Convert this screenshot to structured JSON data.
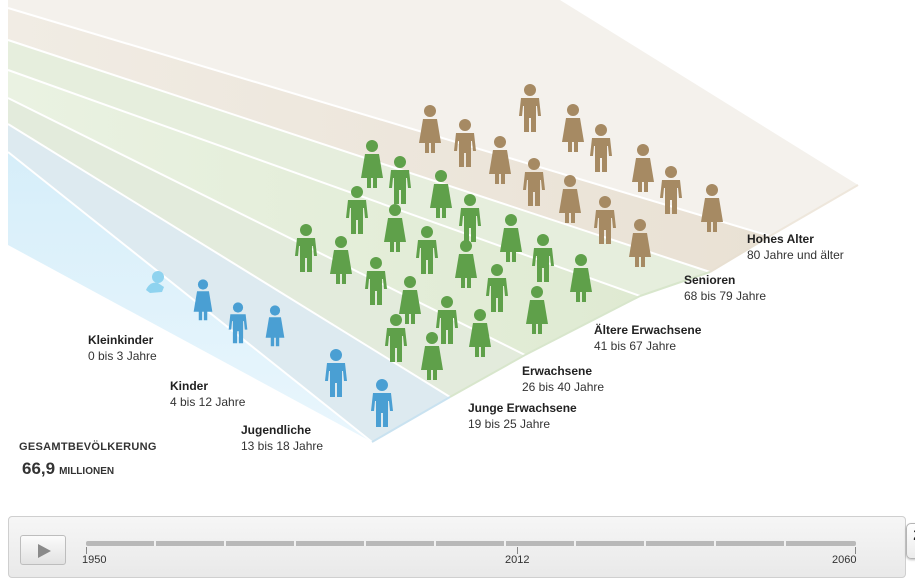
{
  "groups": [
    {
      "name": "Kleinkinder",
      "range": "0 bis 3 Jahre"
    },
    {
      "name": "Kinder",
      "range": "4 bis 12 Jahre"
    },
    {
      "name": "Jugendliche",
      "range": "13 bis 18 Jahre"
    },
    {
      "name": "Junge Erwachsene",
      "range": "19 bis 25 Jahre"
    },
    {
      "name": "Erwachsene",
      "range": "26 bis 40 Jahre"
    },
    {
      "name": "Ältere Erwachsene",
      "range": "41 bis 67 Jahre"
    },
    {
      "name": "Senioren",
      "range": "68 bis 79 Jahre"
    },
    {
      "name": "Hohes Alter",
      "range": "80 Jahre und älter"
    }
  ],
  "total": {
    "label": "GESAMTBEVÖLKERUNG",
    "value": "66,9",
    "unit": "MILLIONEN"
  },
  "timeline": {
    "start": "1950",
    "mid": "2012",
    "end": "2060",
    "selected": "2060",
    "progress": 1.0
  },
  "colors": {
    "blue": "#4a9fd3",
    "green": "#5fa04a",
    "brown": "#a68a63",
    "baby": "#8fd3ef"
  },
  "icons": {
    "play": "play-icon",
    "person": "person-icon"
  }
}
